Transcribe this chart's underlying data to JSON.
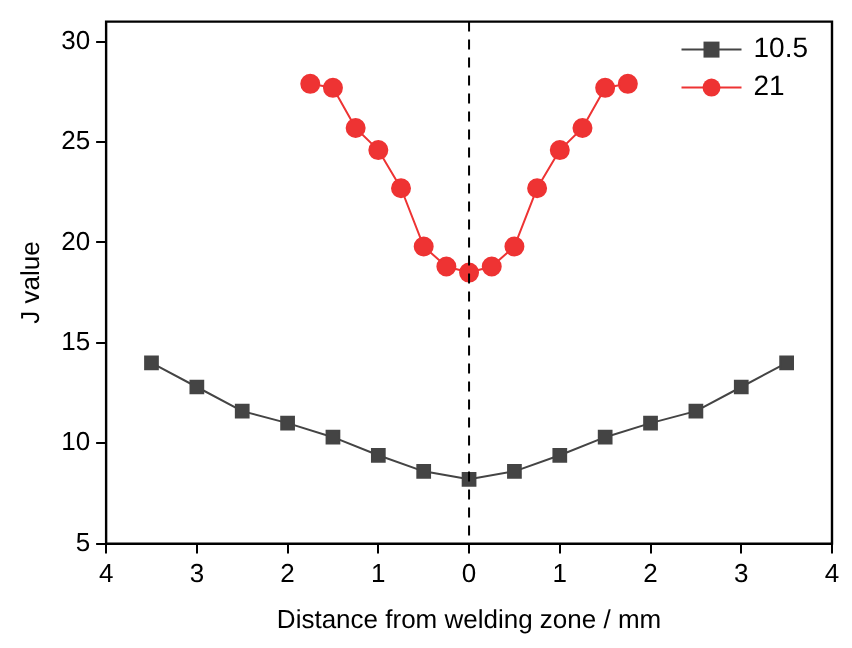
{
  "chart_data": {
    "type": "line",
    "xlabel": "Distance from welding zone / mm",
    "ylabel": "J value",
    "xlim": [
      -4,
      4
    ],
    "xticks": [
      {
        "value": -4,
        "label": "4"
      },
      {
        "value": -3,
        "label": "3"
      },
      {
        "value": -2,
        "label": "2"
      },
      {
        "value": -1,
        "label": "1"
      },
      0,
      1,
      2,
      3,
      4
    ],
    "ylim": [
      5,
      31
    ],
    "yticks": [
      5,
      10,
      15,
      20,
      25,
      30
    ],
    "series": [
      {
        "name": "10.5",
        "color": "#444444",
        "marker": "square",
        "x": [
          -3.5,
          -3,
          -2.5,
          -2,
          -1.5,
          -1,
          -0.5,
          0,
          0.5,
          1,
          1.5,
          2,
          2.5,
          3,
          3.5
        ],
        "values": [
          14.0,
          12.8,
          11.6,
          11.0,
          10.3,
          9.4,
          8.6,
          8.2,
          8.6,
          9.4,
          10.3,
          11.0,
          11.6,
          12.8,
          14.0
        ]
      },
      {
        "name": "21",
        "color": "#ee3333",
        "marker": "circle",
        "x": [
          -1.75,
          -1.5,
          -1.25,
          -1,
          -0.75,
          -0.5,
          -0.25,
          0,
          0.25,
          0.5,
          0.75,
          1,
          1.25,
          1.5,
          1.75
        ],
        "values": [
          27.9,
          27.7,
          25.7,
          24.6,
          22.7,
          19.8,
          18.8,
          18.5,
          18.8,
          19.8,
          22.7,
          24.6,
          25.7,
          27.7,
          27.9
        ]
      }
    ],
    "ref_lines": [
      {
        "axis": "x",
        "value": 0,
        "color": "#000000",
        "line_style": "dashed"
      }
    ],
    "legend": "top right",
    "grid": false,
    "line_style": "solid"
  }
}
